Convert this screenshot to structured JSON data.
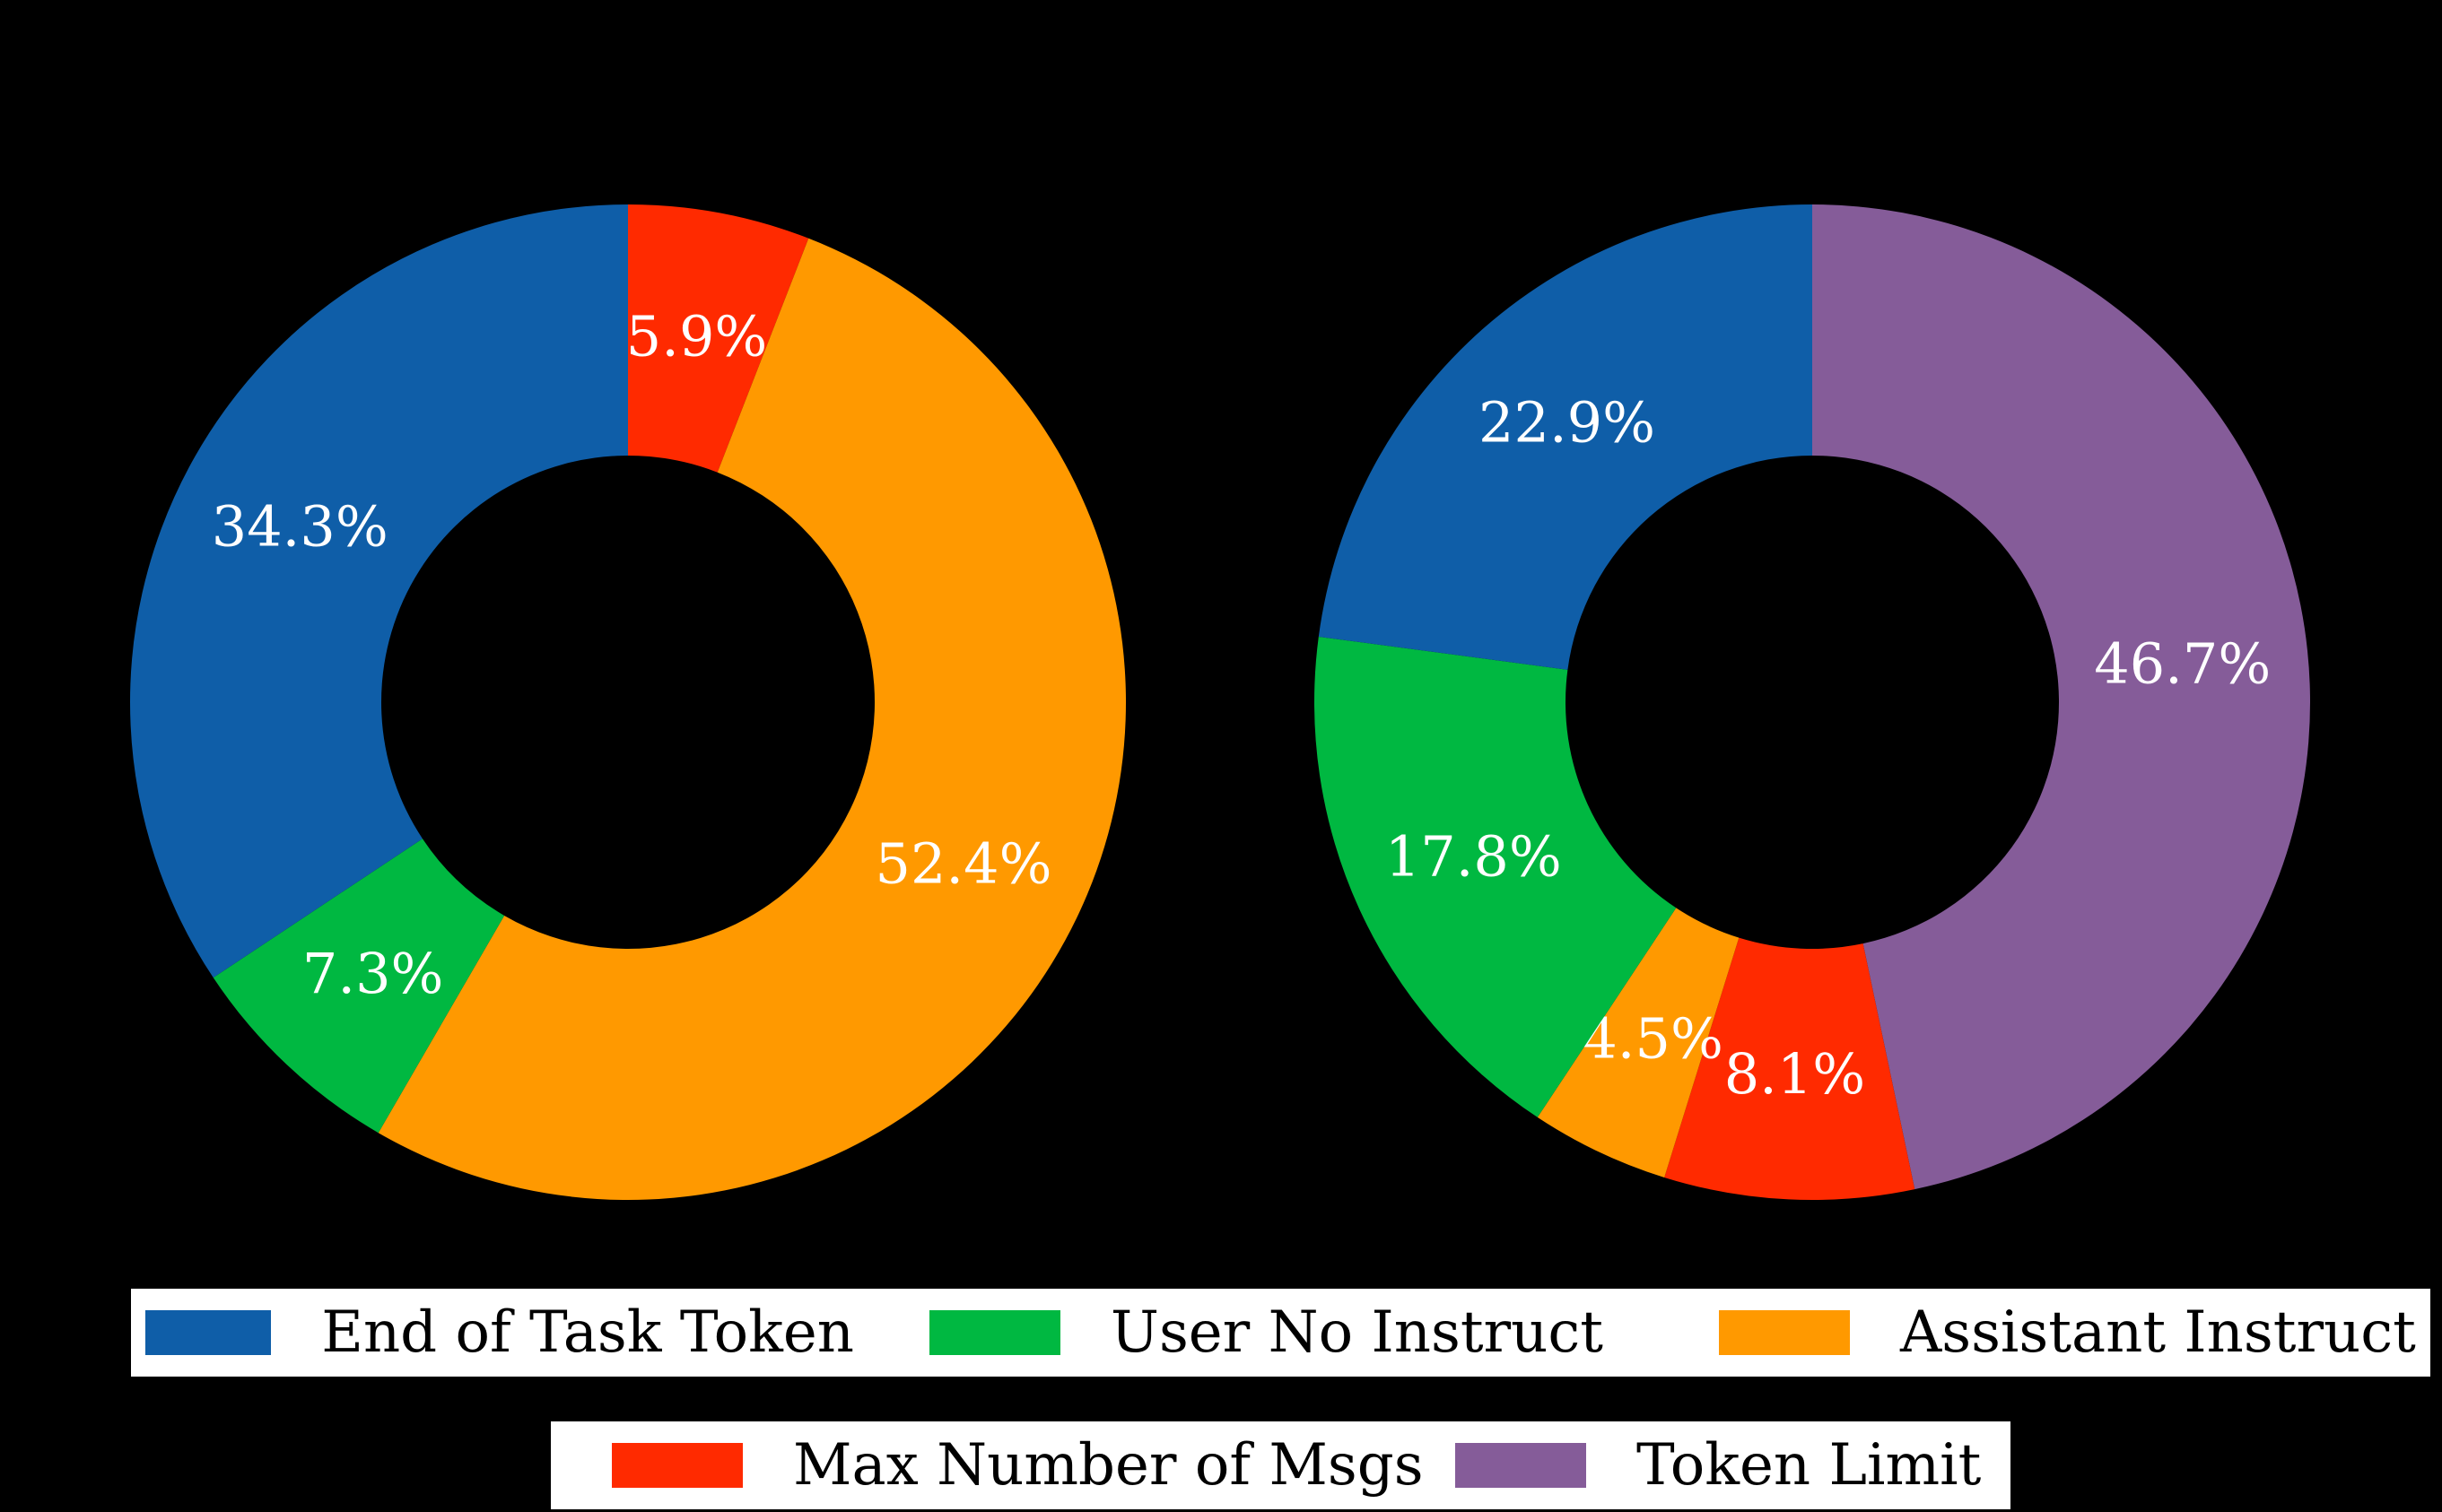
{
  "chart_data": [
    {
      "type": "pie",
      "donut": true,
      "title": "",
      "slices": [
        {
          "label": "Max Number of Msgs",
          "value": 5.9,
          "text": "5.9%",
          "color": "#ff2a00"
        },
        {
          "label": "Assistant Instruct",
          "value": 52.4,
          "text": "52.4%",
          "color": "#ff9900"
        },
        {
          "label": "User No Instruct",
          "value": 7.3,
          "text": "7.3%",
          "color": "#00b841"
        },
        {
          "label": "End of Task Token",
          "value": 34.3,
          "text": "34.3%",
          "color": "#0f5ea8"
        }
      ]
    },
    {
      "type": "pie",
      "donut": true,
      "title": "",
      "slices": [
        {
          "label": "Token Limit",
          "value": 46.7,
          "text": "46.7%",
          "color": "#855c99"
        },
        {
          "label": "Max Number of Msgs",
          "value": 8.1,
          "text": "8.1%",
          "color": "#ff2a00"
        },
        {
          "label": "Assistant Instruct",
          "value": 4.5,
          "text": "4.5%",
          "color": "#ff9900"
        },
        {
          "label": "User No Instruct",
          "value": 17.8,
          "text": "17.8%",
          "color": "#00b841"
        },
        {
          "label": "End of Task Token",
          "value": 22.9,
          "text": "22.9%",
          "color": "#0f5ea8"
        }
      ]
    }
  ],
  "legend": {
    "row1": [
      {
        "label": "End of Task Token",
        "color": "#0f5ea8"
      },
      {
        "label": "User No Instruct",
        "color": "#00b841"
      },
      {
        "label": "Assistant Instruct",
        "color": "#ff9900"
      }
    ],
    "row2": [
      {
        "label": "Max Number of Msgs",
        "color": "#ff2a00"
      },
      {
        "label": "Token Limit",
        "color": "#855c99"
      }
    ]
  }
}
